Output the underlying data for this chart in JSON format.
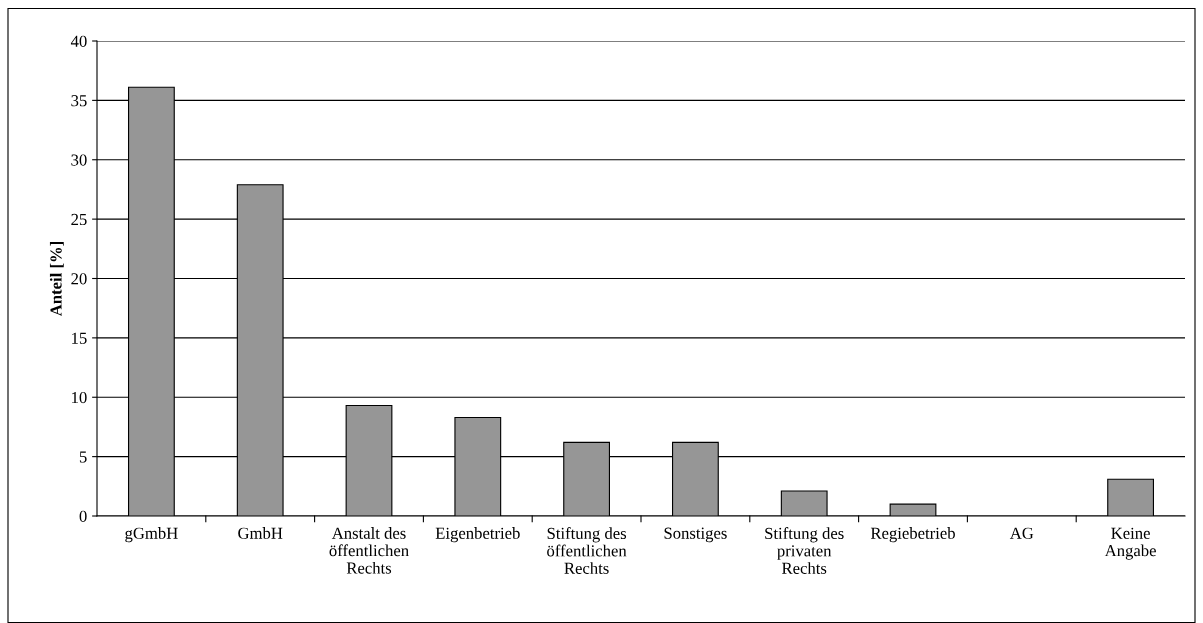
{
  "chart_data": {
    "type": "bar",
    "ylabel": "Anteil [%]",
    "categories": [
      "gGmbH",
      "GmbH",
      "Anstalt des\nöffentlichen\nRechts",
      "Eigenbetrieb",
      "Stiftung des\nöffentlichen\nRechts",
      "Sonstiges",
      "Stiftung des\nprivaten\nRechts",
      "Regiebetrieb",
      "AG",
      "Keine\nAngabe"
    ],
    "values": [
      36.1,
      27.9,
      9.3,
      8.3,
      6.2,
      6.2,
      2.1,
      1.0,
      0,
      3.1
    ],
    "color": "#969696",
    "ylim": [
      0,
      40
    ],
    "yticks": [
      0,
      5,
      10,
      15,
      20,
      25,
      30,
      35,
      40
    ],
    "grid": "y"
  }
}
